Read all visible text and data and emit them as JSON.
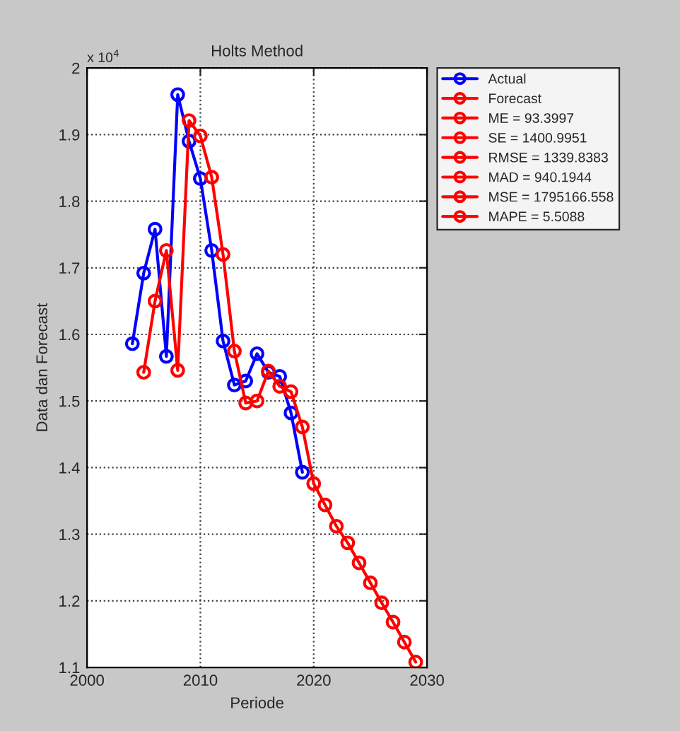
{
  "chart_data": {
    "type": "line",
    "title": "Holts Method",
    "xlabel": "Periode",
    "ylabel": "Data dan Forecast",
    "annotations": [
      "x 10$^{4}$"
    ],
    "xlim": [
      2000,
      2030
    ],
    "xticks": [
      2000,
      2010,
      2020,
      2030
    ],
    "ylim": [
      1.1,
      2
    ],
    "yticks": [
      1.1,
      1.2,
      1.3,
      1.4,
      1.5,
      1.6,
      1.7,
      1.8,
      1.9,
      2
    ],
    "grid": true,
    "legend": "right",
    "marker": "circle",
    "line_style": "solid",
    "series": [
      {
        "name": "Actual",
        "color": "#0000ff",
        "x": [
          2004,
          2005,
          2006,
          2007,
          2008,
          2009,
          2010,
          2011,
          2012,
          2013,
          2014,
          2015,
          2016,
          2017,
          2018,
          2019
        ],
        "values": [
          1.586,
          1.692,
          1.758,
          1.567,
          1.96,
          1.89,
          1.834,
          1.726,
          1.59,
          1.524,
          1.53,
          1.571,
          1.543,
          1.537,
          1.482,
          1.393
        ]
      },
      {
        "name": "Forecast",
        "color": "#ff0000",
        "x": [
          2005,
          2006,
          2007,
          2008,
          2009,
          2010,
          2011,
          2012,
          2013,
          2014,
          2015,
          2016,
          2017,
          2018,
          2019,
          2020,
          2021,
          2022,
          2023,
          2024,
          2025,
          2026,
          2027,
          2028,
          2029
        ],
        "values": [
          1.543,
          1.65,
          1.726,
          1.546,
          1.921,
          1.898,
          1.836,
          1.72,
          1.575,
          1.497,
          1.5,
          1.545,
          1.522,
          1.514,
          1.461,
          1.376,
          1.344,
          1.312,
          1.287,
          1.257,
          1.227,
          1.197,
          1.168,
          1.138,
          1.108
        ]
      },
      {
        "name": "ME = 93.3997",
        "color": "#ff0000"
      },
      {
        "name": "SE = 1400.9951",
        "color": "#ff0000"
      },
      {
        "name": "RMSE = 1339.8383",
        "color": "#ff0000"
      },
      {
        "name": "MAD = 940.1944",
        "color": "#ff0000"
      },
      {
        "name": "MSE = 1795166.558",
        "color": "#ff0000"
      },
      {
        "name": "MAPE = 5.5088",
        "color": "#ff0000"
      }
    ]
  }
}
